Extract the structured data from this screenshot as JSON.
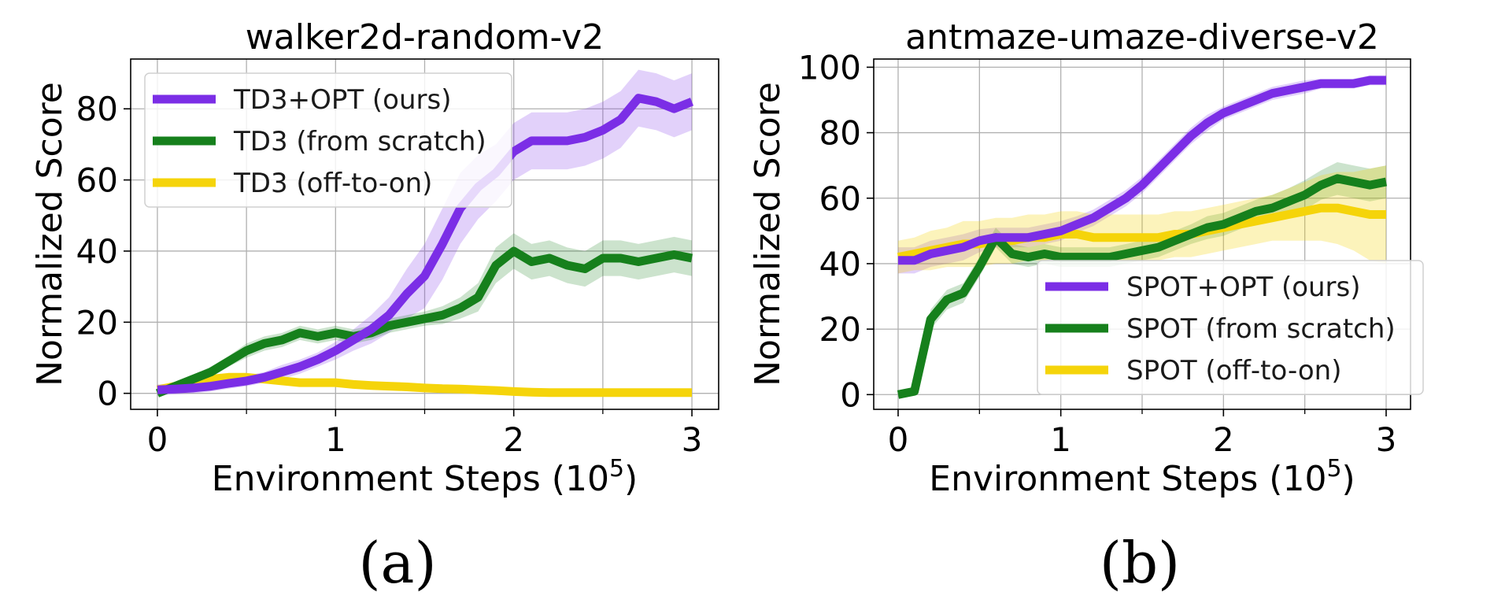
{
  "chart_data": [
    {
      "type": "line",
      "title": "walker2d-random-v2",
      "xlabel": "Environment Steps (10",
      "xlabel_exp": "5",
      "xlabel_suffix": ")",
      "ylabel": "Normalized Score",
      "xlim": [
        -0.15,
        3.15
      ],
      "ylim": [
        -4.5,
        94
      ],
      "xticks": [
        0,
        1,
        2,
        3
      ],
      "xminor": [
        0.5,
        1.5,
        2.5
      ],
      "yticks": [
        0,
        20,
        40,
        60,
        80
      ],
      "grid": true,
      "legend_position": "upper-left",
      "caption": "(a)",
      "series": [
        {
          "name": "TD3+OPT (ours)",
          "color": "#7b2ee6",
          "x": [
            0,
            0.1,
            0.2,
            0.3,
            0.4,
            0.5,
            0.6,
            0.7,
            0.8,
            0.9,
            1.0,
            1.1,
            1.2,
            1.3,
            1.4,
            1.5,
            1.6,
            1.7,
            1.8,
            1.9,
            2.0,
            2.1,
            2.2,
            2.3,
            2.4,
            2.5,
            2.6,
            2.7,
            2.8,
            2.9,
            3.0
          ],
          "y": [
            1,
            1.2,
            1.5,
            2,
            2.8,
            3.5,
            4.5,
            6,
            7.5,
            9.5,
            12,
            15,
            18,
            22,
            28,
            33,
            42,
            52,
            58,
            62,
            68,
            71,
            71,
            71,
            72,
            74,
            77,
            83,
            82,
            80,
            82
          ],
          "band": [
            1.5,
            1.5,
            1.5,
            1.5,
            1.5,
            1.5,
            1.5,
            2,
            2,
            2,
            2.5,
            3,
            4,
            5,
            7,
            9,
            10,
            10,
            9,
            8,
            8,
            8,
            8,
            8,
            8,
            8,
            8,
            8,
            8,
            8,
            8
          ]
        },
        {
          "name": "TD3 (from scratch)",
          "color": "#16801c",
          "x": [
            0,
            0.1,
            0.2,
            0.3,
            0.4,
            0.5,
            0.6,
            0.7,
            0.8,
            0.9,
            1.0,
            1.1,
            1.2,
            1.3,
            1.4,
            1.5,
            1.6,
            1.7,
            1.8,
            1.9,
            2.0,
            2.1,
            2.2,
            2.3,
            2.4,
            2.5,
            2.6,
            2.7,
            2.8,
            2.9,
            3.0
          ],
          "y": [
            0,
            2,
            4,
            6,
            9,
            12,
            14,
            15,
            17,
            16,
            17,
            16,
            17,
            19,
            20,
            21,
            22,
            24,
            27,
            36,
            40,
            37,
            38,
            36,
            35,
            38,
            38,
            37,
            38,
            39,
            38
          ],
          "band": [
            0.8,
            1,
            1.2,
            1.5,
            1.5,
            2,
            2,
            2,
            2,
            2,
            2,
            2,
            2,
            2,
            2,
            2,
            2.5,
            3,
            4,
            5,
            5,
            5,
            5,
            5,
            5,
            5,
            5,
            5,
            5,
            5,
            5
          ]
        },
        {
          "name": "TD3 (off-to-on)",
          "color": "#f5d40a",
          "x": [
            0,
            0.1,
            0.2,
            0.3,
            0.4,
            0.5,
            0.6,
            0.7,
            0.8,
            0.9,
            1.0,
            1.1,
            1.2,
            1.3,
            1.4,
            1.5,
            1.6,
            1.7,
            1.8,
            1.9,
            2.0,
            2.1,
            2.2,
            2.3,
            2.4,
            2.5,
            2.6,
            2.7,
            2.8,
            2.9,
            3.0
          ],
          "y": [
            1,
            2,
            3,
            4,
            4.5,
            4.5,
            4,
            3.5,
            3,
            3,
            3,
            2.5,
            2.2,
            2,
            1.8,
            1.5,
            1.3,
            1.2,
            1,
            0.8,
            0.5,
            0.3,
            0.2,
            0.2,
            0.2,
            0.2,
            0.2,
            0.2,
            0.2,
            0.2,
            0.2
          ],
          "band": [
            0.8,
            0.8,
            0.8,
            0.8,
            0.8,
            0.8,
            0.8,
            0.8,
            0.8,
            0.8,
            0.8,
            0.8,
            0.8,
            0.8,
            0.8,
            0.8,
            0.8,
            0.8,
            0.8,
            0.8,
            0.8,
            0.8,
            0.8,
            0.8,
            0.8,
            0.8,
            0.8,
            0.8,
            0.8,
            0.8,
            0.8
          ]
        }
      ]
    },
    {
      "type": "line",
      "title": "antmaze-umaze-diverse-v2",
      "xlabel": "Environment Steps (10",
      "xlabel_exp": "5",
      "xlabel_suffix": ")",
      "ylabel": "Normalized Score",
      "xlim": [
        -0.15,
        3.15
      ],
      "ylim": [
        -4.5,
        102.5
      ],
      "xticks": [
        0,
        1,
        2,
        3
      ],
      "xminor": [
        0.5,
        1.5,
        2.5
      ],
      "yticks": [
        0,
        20,
        40,
        60,
        80,
        100
      ],
      "grid": true,
      "legend_position": "lower-right",
      "caption": "(b)",
      "series": [
        {
          "name": "SPOT+OPT (ours)",
          "color": "#7b2ee6",
          "x": [
            0,
            0.1,
            0.2,
            0.3,
            0.4,
            0.5,
            0.6,
            0.7,
            0.8,
            0.9,
            1.0,
            1.1,
            1.2,
            1.3,
            1.4,
            1.5,
            1.6,
            1.7,
            1.8,
            1.9,
            2.0,
            2.1,
            2.2,
            2.3,
            2.4,
            2.5,
            2.6,
            2.7,
            2.8,
            2.9,
            3.0
          ],
          "y": [
            41,
            41,
            43,
            44,
            45,
            47,
            48,
            48,
            48,
            49,
            50,
            52,
            54,
            57,
            60,
            64,
            69,
            74,
            79,
            83,
            86,
            88,
            90,
            92,
            93,
            94,
            95,
            95,
            95,
            96,
            96
          ],
          "band": [
            4,
            4,
            4,
            4,
            4,
            3.5,
            3,
            3,
            3,
            3,
            3,
            2.5,
            2.5,
            2.5,
            2.5,
            2.5,
            2.5,
            2.5,
            2.5,
            2.5,
            2,
            2,
            2,
            2,
            2,
            2,
            1.5,
            1.5,
            1.5,
            1.5,
            1.5
          ]
        },
        {
          "name": "SPOT (from scratch)",
          "color": "#16801c",
          "x": [
            0,
            0.1,
            0.2,
            0.3,
            0.4,
            0.5,
            0.6,
            0.7,
            0.8,
            0.9,
            1.0,
            1.1,
            1.2,
            1.3,
            1.4,
            1.5,
            1.6,
            1.7,
            1.8,
            1.9,
            2.0,
            2.1,
            2.2,
            2.3,
            2.4,
            2.5,
            2.6,
            2.7,
            2.8,
            2.9,
            3.0
          ],
          "y": [
            0,
            1,
            23,
            29,
            31,
            39,
            48,
            43,
            42,
            43,
            42,
            42,
            42,
            42,
            43,
            44,
            45,
            47,
            49,
            51,
            52,
            54,
            56,
            57,
            59,
            61,
            64,
            66,
            65,
            64,
            65
          ],
          "band": [
            0.8,
            1,
            3,
            3,
            3,
            3,
            3,
            3,
            3,
            3,
            3,
            3,
            3,
            3,
            3,
            3,
            3,
            3,
            3,
            3.5,
            3.5,
            3.5,
            3.5,
            4,
            4,
            4.5,
            4.5,
            5,
            5,
            5,
            5
          ]
        },
        {
          "name": "SPOT (off-to-on)",
          "color": "#f5d40a",
          "x": [
            0,
            0.1,
            0.2,
            0.3,
            0.4,
            0.5,
            0.6,
            0.7,
            0.8,
            0.9,
            1.0,
            1.1,
            1.2,
            1.3,
            1.4,
            1.5,
            1.6,
            1.7,
            1.8,
            1.9,
            2.0,
            2.1,
            2.2,
            2.3,
            2.4,
            2.5,
            2.6,
            2.7,
            2.8,
            2.9,
            3.0
          ],
          "y": [
            42,
            43,
            44,
            45,
            46,
            46,
            47,
            47,
            48,
            48,
            49,
            49,
            48,
            48,
            48,
            48,
            48,
            49,
            49,
            50,
            51,
            52,
            53,
            54,
            55,
            56,
            57,
            57,
            56,
            55,
            55
          ],
          "band": [
            5,
            5,
            6,
            6,
            7,
            7,
            7,
            7,
            7,
            7,
            7,
            7,
            7,
            7,
            7,
            7,
            7,
            7,
            7,
            7,
            7,
            7,
            7,
            7,
            8,
            9,
            10,
            11,
            12,
            14,
            15
          ]
        }
      ]
    }
  ]
}
